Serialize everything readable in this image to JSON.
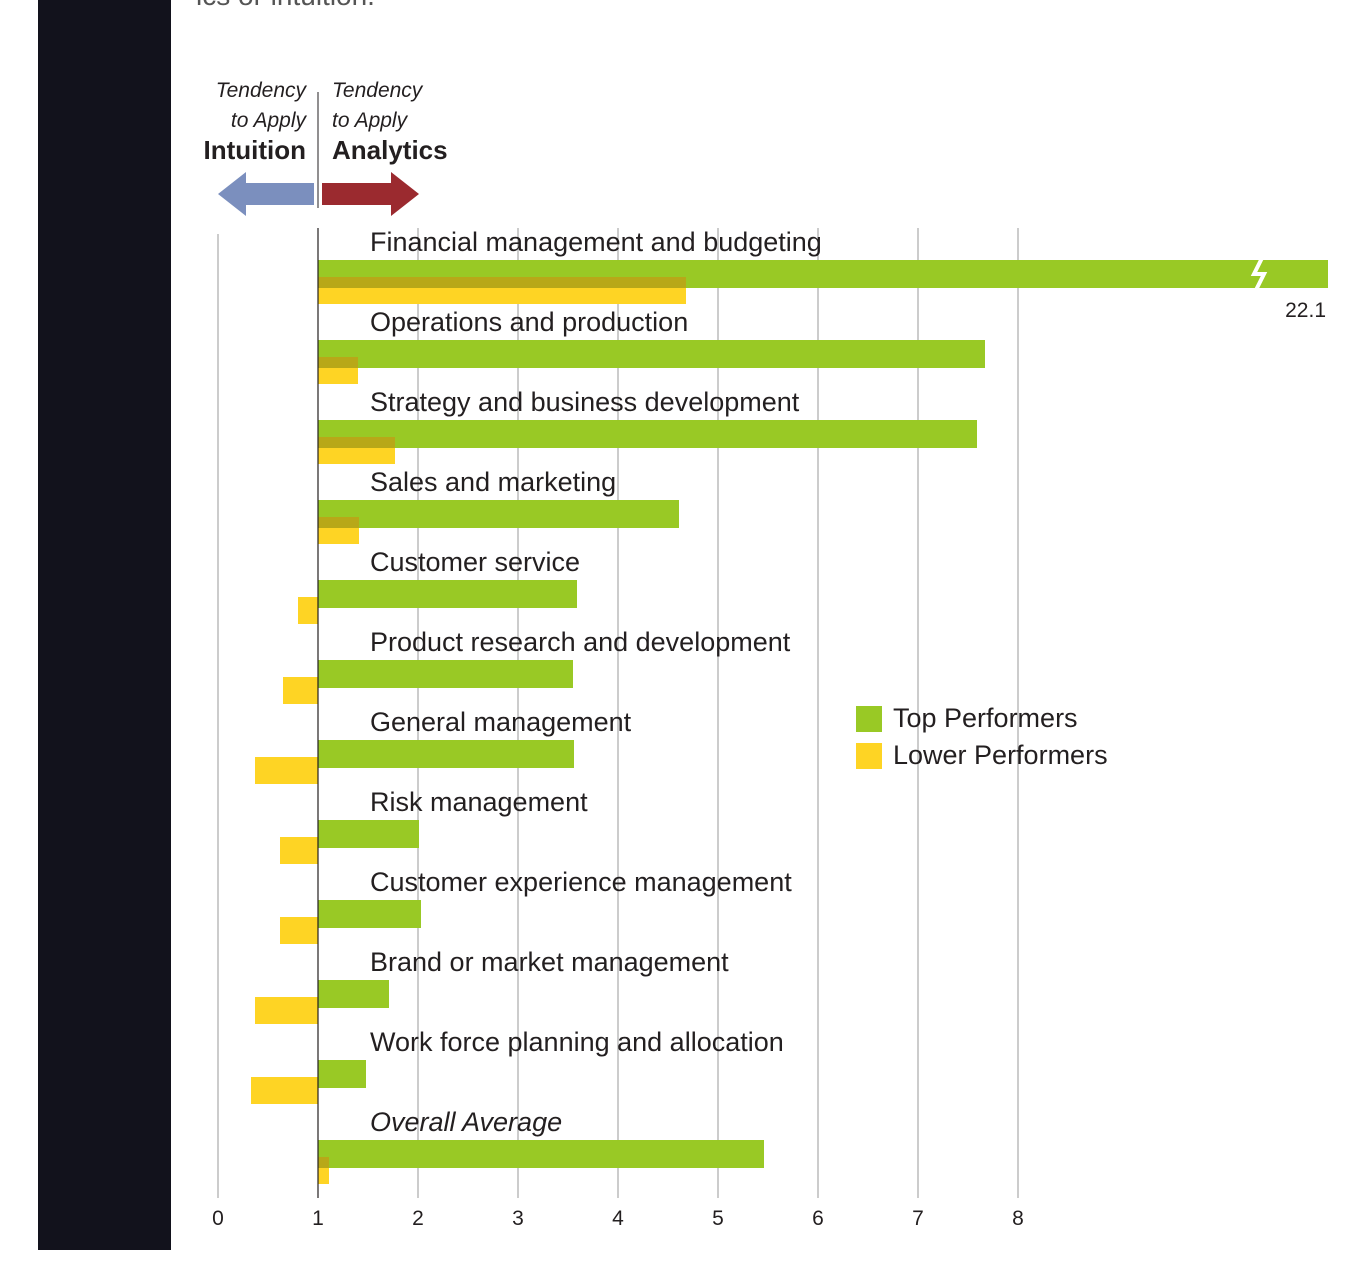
{
  "page": {
    "intro_text": "ics or intuition."
  },
  "header": {
    "left_line1": "Tendency",
    "left_line2": "to Apply",
    "left_line3": "Intuition",
    "right_line1": "Tendency",
    "right_line2": "to Apply",
    "right_line3": "Analytics"
  },
  "colors": {
    "top": "#99c925",
    "lower": "#fed424",
    "overlap": "#b8a818",
    "arrow_left": "#7b8fbe",
    "arrow_right": "#9b2a2f",
    "grid": "#999999"
  },
  "chart_data": {
    "type": "bar",
    "orientation": "horizontal",
    "categories": [
      "Financial management and budgeting",
      "Operations and production",
      "Strategy and business development",
      "Sales and marketing",
      "Customer service",
      "Product research and development",
      "General management",
      "Risk management",
      "Customer experience management",
      "Brand or market management",
      "Work force planning and allocation",
      "Overall Average"
    ],
    "series": [
      {
        "name": "Top Performers",
        "values": [
          22.1,
          7.67,
          7.59,
          4.61,
          3.59,
          3.55,
          3.56,
          2.01,
          2.03,
          1.71,
          1.48,
          5.46
        ]
      },
      {
        "name": "Lower Performers",
        "values": [
          4.68,
          1.4,
          1.77,
          1.41,
          0.8,
          0.65,
          0.37,
          0.62,
          0.62,
          0.37,
          0.33,
          1.11
        ]
      }
    ],
    "data_labels": [
      "22.1"
    ],
    "xticks": [
      "0",
      "1",
      "2",
      "3",
      "4",
      "5",
      "6",
      "7",
      "8"
    ],
    "xlim": [
      0,
      8
    ],
    "axis_break": true,
    "baseline": 1,
    "legend_position": "right-center",
    "grid": true
  }
}
